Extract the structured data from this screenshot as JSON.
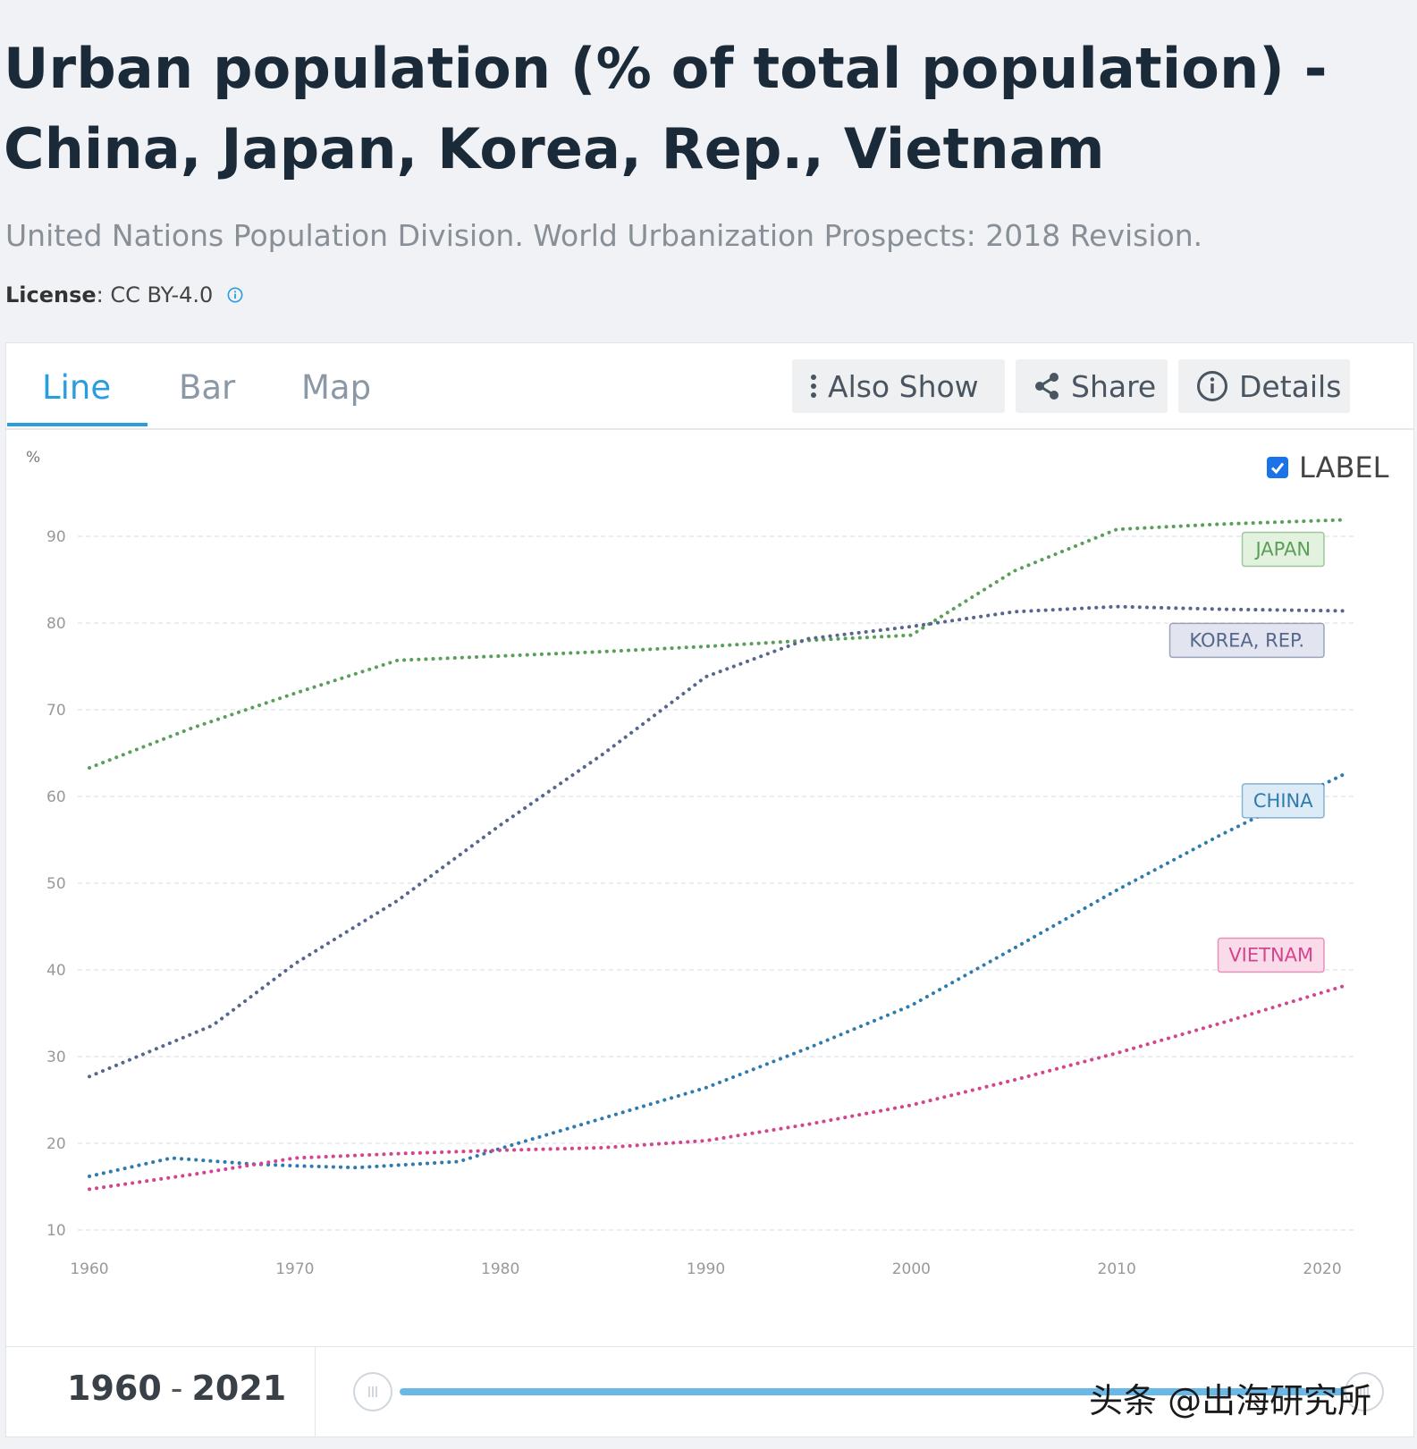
{
  "header": {
    "title": "Urban population (% of total population) - China, Japan, Korea, Rep., Vietnam",
    "source": "United Nations Population Division. World Urbanization Prospects: 2018 Revision.",
    "license_label": "License",
    "license_value": " : CC BY-4.0"
  },
  "tabs": [
    {
      "label": "Line"
    },
    {
      "label": "Bar"
    },
    {
      "label": "Map"
    }
  ],
  "toolbar": {
    "also_show": "Also Show",
    "share": "Share",
    "details": "Details"
  },
  "label_toggle": {
    "label": "LABEL",
    "checked": true
  },
  "chart_data": {
    "type": "line",
    "title": "Urban population (% of total population) - China, Japan, Korea, Rep., Vietnam",
    "xlabel": "",
    "ylabel": "%",
    "xlim": [
      1960,
      2021
    ],
    "ylim": [
      10,
      90
    ],
    "xticks": [
      1960,
      1970,
      1980,
      1990,
      2000,
      2010,
      2020
    ],
    "yticks": [
      10,
      20,
      30,
      40,
      50,
      60,
      70,
      80,
      90
    ],
    "series": [
      {
        "name": "JAPAN",
        "color": "#5a9e58",
        "x": [
          1960,
          1965,
          1970,
          1975,
          1980,
          1985,
          1990,
          1995,
          2000,
          2005,
          2010,
          2015,
          2021
        ],
        "y": [
          63.3,
          67.9,
          71.9,
          75.7,
          76.2,
          76.7,
          77.3,
          78.0,
          78.6,
          86.0,
          90.8,
          91.4,
          91.9
        ]
      },
      {
        "name": "KOREA, REP.",
        "color": "#56668c",
        "x": [
          1960,
          1966,
          1970,
          1975,
          1980,
          1985,
          1990,
          1995,
          2000,
          2005,
          2010,
          2015,
          2021
        ],
        "y": [
          27.7,
          33.6,
          40.7,
          48.0,
          56.7,
          64.9,
          73.8,
          78.2,
          79.6,
          81.3,
          81.9,
          81.6,
          81.4
        ]
      },
      {
        "name": "CHINA",
        "color": "#2f7bad",
        "x": [
          1960,
          1964,
          1968,
          1970,
          1973,
          1978,
          1980,
          1985,
          1990,
          1995,
          2000,
          2005,
          2010,
          2015,
          2021
        ],
        "y": [
          16.2,
          18.3,
          17.6,
          17.4,
          17.2,
          17.9,
          19.4,
          22.9,
          26.4,
          31.0,
          35.9,
          42.5,
          49.2,
          55.5,
          62.5
        ]
      },
      {
        "name": "VIETNAM",
        "color": "#d3458e",
        "x": [
          1960,
          1965,
          1970,
          1975,
          1980,
          1985,
          1990,
          1995,
          2000,
          2005,
          2010,
          2015,
          2021
        ],
        "y": [
          14.7,
          16.4,
          18.3,
          18.8,
          19.2,
          19.5,
          20.3,
          22.2,
          24.4,
          27.3,
          30.4,
          33.8,
          38.1
        ]
      }
    ]
  },
  "footer": {
    "range_start": "1960",
    "range_dash": "-",
    "range_end": "2021"
  },
  "watermark": "头条 @出海研究所"
}
